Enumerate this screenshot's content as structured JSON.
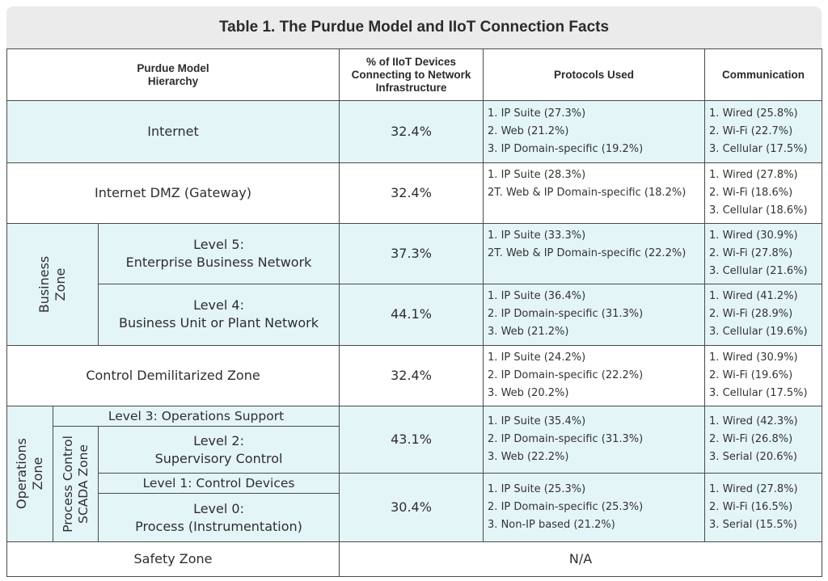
{
  "title": "Table 1. The Purdue Model and IIoT Connection Facts",
  "headers": {
    "hierarchy": "Purdue Model\nHierarchy",
    "percent": "% of IIoT Devices\nConnecting to Network\nInfrastructure",
    "protocols": "Protocols Used",
    "communication": "Communication"
  },
  "zones": {
    "business": "Business\nZone",
    "operations": "Operations\nZone",
    "process_control": "Process Control\nSCADA Zone"
  },
  "rows": {
    "internet": {
      "label": "Internet",
      "percent": "32.4%",
      "protocols": [
        "1. IP Suite (27.3%)",
        "2. Web (21.2%)",
        "3. IP Domain-specific (19.2%)"
      ],
      "communication": [
        "1. Wired (25.8%)",
        "2. Wi-Fi (22.7%)",
        "3. Cellular (17.5%)"
      ]
    },
    "internet_dmz": {
      "label": "Internet DMZ (Gateway)",
      "percent": "32.4%",
      "protocols": [
        "1. IP Suite (28.3%)",
        "2T. Web & IP Domain-specific (18.2%)"
      ],
      "communication": [
        "1. Wired (27.8%)",
        "2. Wi-Fi (18.6%)",
        "3. Cellular (18.6%)"
      ]
    },
    "level5": {
      "label": "Level 5:\nEnterprise Business Network",
      "percent": "37.3%",
      "protocols": [
        "1. IP Suite (33.3%)",
        "2T. Web & IP Domain-specific (22.2%)"
      ],
      "communication": [
        "1. Wired (30.9%)",
        "2. Wi-Fi (27.8%)",
        "3. Cellular (21.6%)"
      ]
    },
    "level4": {
      "label": "Level 4:\nBusiness Unit or Plant Network",
      "percent": "44.1%",
      "protocols": [
        "1. IP Suite (36.4%)",
        "2. IP Domain-specific (31.3%)",
        "3. Web (21.2%)"
      ],
      "communication": [
        "1. Wired (41.2%)",
        "2. Wi-Fi (28.9%)",
        "3. Cellular (19.6%)"
      ]
    },
    "control_dmz": {
      "label": "Control Demilitarized Zone",
      "percent": "32.4%",
      "protocols": [
        "1. IP Suite (24.2%)",
        "2. IP Domain-specific (22.2%)",
        "3. Web (20.2%)"
      ],
      "communication": [
        "1. Wired (30.9%)",
        "2. Wi-Fi (19.6%)",
        "3. Cellular (17.5%)"
      ]
    },
    "level3": {
      "label": "Level 3: Operations Support"
    },
    "level2": {
      "label": "Level 2:\nSupervisory Control",
      "percent": "43.1%",
      "protocols": [
        "1. IP Suite (35.4%)",
        "2. IP Domain-specific (31.3%)",
        "3. Web (22.2%)"
      ],
      "communication": [
        "1. Wired (42.3%)",
        "2. Wi-Fi (26.8%)",
        "3. Serial (20.6%)"
      ]
    },
    "level1": {
      "label": "Level 1: Control Devices"
    },
    "level0": {
      "label": "Level 0:\nProcess (Instrumentation)",
      "percent": "30.4%",
      "protocols": [
        "1. IP Suite (25.3%)",
        "2. IP Domain-specific (25.3%)",
        "3. Non-IP based (21.2%)"
      ],
      "communication": [
        "1. Wired (27.8%)",
        "2. Wi-Fi (16.5%)",
        "3. Serial (15.5%)"
      ]
    },
    "safety": {
      "label": "Safety Zone",
      "value": "N/A"
    }
  }
}
